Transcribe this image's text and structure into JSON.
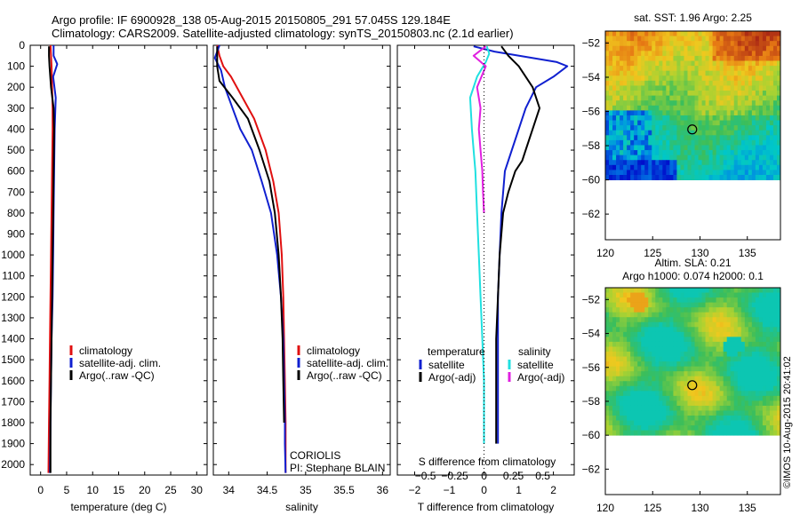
{
  "header": {
    "line1": "Argo profile: IF 6900928_138 05-Aug-2015 20150805_291 57.045S 129.184E",
    "line2": "Climatology: CARS2009. Satellite-adjusted climatology: synTS_20150803.nc (2.1d earlier)"
  },
  "credit": "©IMOS 10-Aug-2015 20:41:02",
  "colors": {
    "climatology": "#e01010",
    "satellite": "#1020d0",
    "argo": "#000000",
    "sal_satellite": "#20e0e0",
    "sal_argo": "#e020e0"
  },
  "chart_data": [
    {
      "id": "temperature",
      "type": "line",
      "xlabel": "temperature (deg C)",
      "ylabel": "",
      "xlim": [
        -2,
        32
      ],
      "ylim": [
        2050,
        0
      ],
      "xticks": [
        0,
        5,
        10,
        15,
        20,
        25,
        30
      ],
      "xtick_labels": [
        "0",
        "5",
        "10",
        "15",
        "20",
        "25",
        "30"
      ],
      "yticks": [
        0,
        100,
        200,
        300,
        400,
        500,
        600,
        700,
        800,
        900,
        1000,
        1100,
        1200,
        1300,
        1400,
        1500,
        1600,
        1700,
        1800,
        1900,
        2000
      ],
      "ytick_labels": [
        "0",
        "100",
        "200",
        "300",
        "400",
        "500",
        "600",
        "700",
        "800",
        "900",
        "1000",
        "1100",
        "1200",
        "1300",
        "1400",
        "1500",
        "1600",
        "1700",
        "1800",
        "1900",
        "2000"
      ],
      "legend": [
        "climatology",
        "satellite-adj. clim.",
        "Argo(..raw -QC)"
      ],
      "series": [
        {
          "name": "climatology",
          "color": "#e01010",
          "x": [
            1.9,
            2.0,
            2.1,
            2.2,
            2.3,
            2.3,
            2.2,
            2.1,
            2.0,
            1.9,
            1.8,
            1.7,
            1.6,
            1.5
          ],
          "y": [
            0,
            50,
            100,
            200,
            300,
            400,
            600,
            800,
            1000,
            1200,
            1400,
            1600,
            1800,
            2040
          ]
        },
        {
          "name": "satellite-adj. clim.",
          "color": "#1020d0",
          "x": [
            2.5,
            2.5,
            3.2,
            2.4,
            2.9,
            2.7,
            2.6,
            2.5,
            2.4,
            2.3,
            2.1,
            2.0,
            1.9,
            1.8
          ],
          "y": [
            0,
            50,
            90,
            150,
            250,
            400,
            600,
            800,
            1000,
            1200,
            1400,
            1600,
            1800,
            2040
          ]
        },
        {
          "name": "Argo(..raw -QC)",
          "color": "#000000",
          "x": [
            1.6,
            1.6,
            1.7,
            2.0,
            2.5,
            2.6,
            2.5,
            2.4,
            2.3,
            2.2,
            2.1,
            2.0,
            1.9,
            1.9
          ],
          "y": [
            5,
            50,
            100,
            200,
            300,
            400,
            600,
            800,
            1000,
            1200,
            1400,
            1600,
            1800,
            2040
          ]
        }
      ]
    },
    {
      "id": "salinity",
      "type": "line",
      "xlabel": "salinity",
      "ylabel": "",
      "xlim": [
        33.8,
        36.1
      ],
      "ylim": [
        2050,
        0
      ],
      "xticks": [
        34,
        34.5,
        35,
        35.5,
        36
      ],
      "xtick_labels": [
        "34",
        "34.5",
        "35",
        "35.5",
        "36"
      ],
      "legend": [
        "climatology",
        "satellite-adj. clim.",
        "Argo(..raw -QC)"
      ],
      "annotations": [
        "CORIOLIS",
        "PI: Stephane BLAIN"
      ],
      "series": [
        {
          "name": "climatology",
          "color": "#e01010",
          "x": [
            33.85,
            33.88,
            33.93,
            34.03,
            34.18,
            34.33,
            34.48,
            34.58,
            34.65,
            34.69,
            34.71,
            34.72,
            34.73,
            34.74,
            34.74,
            34.74
          ],
          "y": [
            0,
            50,
            100,
            150,
            250,
            350,
            500,
            650,
            800,
            1000,
            1200,
            1400,
            1600,
            1800,
            1900,
            2040
          ]
        },
        {
          "name": "satellite-adj. clim.",
          "color": "#1020d0",
          "x": [
            33.88,
            33.82,
            33.9,
            33.95,
            34.05,
            34.15,
            34.3,
            34.43,
            34.55,
            34.63,
            34.68,
            34.71,
            34.72,
            34.73,
            34.73,
            34.74
          ],
          "y": [
            0,
            60,
            120,
            200,
            300,
            400,
            500,
            650,
            800,
            1000,
            1200,
            1400,
            1600,
            1800,
            1900,
            2040
          ]
        },
        {
          "name": "Argo(..raw -QC)",
          "color": "#000000",
          "x": [
            33.85,
            33.85,
            33.88,
            34.05,
            34.25,
            34.4,
            34.53,
            34.6,
            34.65,
            34.68,
            34.7,
            34.71,
            34.72
          ],
          "y": [
            5,
            100,
            170,
            250,
            350,
            500,
            650,
            800,
            1000,
            1200,
            1400,
            1600,
            1800
          ]
        }
      ]
    },
    {
      "id": "differences",
      "type": "line",
      "xlabel": "T difference from climatology",
      "xlabel_top": "S difference from climatology",
      "xlim": [
        -2.5,
        2.6
      ],
      "ylim": [
        2050,
        0
      ],
      "xticks": [
        -2,
        -1,
        0,
        1,
        2
      ],
      "xtick_labels": [
        "−2",
        "−1",
        "0",
        "1",
        "2"
      ],
      "sticks": [
        -0.5,
        -0.25,
        0,
        0.25,
        0.5
      ],
      "stick_labels": [
        "−0.5",
        "−0.25",
        "0",
        "0.25",
        "0.5"
      ],
      "legend_titles": [
        "temperature",
        "salinity"
      ],
      "legend_temperature": [
        "satellite",
        "Argo(-adj)"
      ],
      "legend_salinity": [
        "satellite",
        "Argo(-adj)"
      ],
      "series": [
        {
          "name": "satellite",
          "group": "temperature",
          "color": "#1020d0",
          "x": [
            -0.3,
            0.3,
            2.1,
            2.4,
            2.0,
            1.5,
            1.2,
            1.0,
            0.8,
            0.6,
            0.5,
            0.45,
            0.4,
            0.4,
            0.4,
            0.4
          ],
          "y": [
            5,
            30,
            80,
            100,
            150,
            200,
            300,
            400,
            500,
            600,
            800,
            1000,
            1200,
            1400,
            1600,
            1900
          ]
        },
        {
          "name": "Argo(-adj)",
          "group": "temperature",
          "color": "#000000",
          "x": [
            0.5,
            0.7,
            1.0,
            1.4,
            1.6,
            1.4,
            1.2,
            1.1,
            0.9,
            0.7,
            0.55,
            0.45,
            0.4,
            0.35,
            0.35,
            0.35
          ],
          "y": [
            5,
            50,
            100,
            200,
            300,
            400,
            500,
            550,
            600,
            700,
            800,
            1000,
            1200,
            1400,
            1600,
            1900
          ]
        },
        {
          "name": "satellite",
          "group": "salinity",
          "color": "#20e0e0",
          "x": [
            0.08,
            0.15,
            0.05,
            -0.2,
            -0.4,
            -0.35,
            -0.3,
            -0.25,
            -0.2,
            -0.15,
            -0.1,
            -0.05,
            0,
            0,
            0,
            0
          ],
          "y": [
            5,
            40,
            80,
            150,
            250,
            400,
            500,
            600,
            800,
            1000,
            1200,
            1400,
            1600,
            1700,
            1800,
            1900
          ]
        },
        {
          "name": "Argo(-adj)",
          "group": "salinity",
          "color": "#e020e0",
          "x": [
            0.05,
            -0.3,
            0.05,
            -0.2,
            -0.1,
            -0.15,
            -0.1,
            -0.05,
            -0.03,
            0
          ],
          "y": [
            5,
            50,
            100,
            200,
            300,
            400,
            500,
            600,
            700,
            800
          ]
        }
      ]
    },
    {
      "id": "sst-map",
      "type": "heatmap",
      "title": "sat. SST: 1.96 Argo: 2.25",
      "xlim": [
        120,
        138.5
      ],
      "ylim": [
        -63.5,
        -51.3
      ],
      "xticks": [
        120,
        125,
        130,
        135
      ],
      "yticks": [
        -52,
        -54,
        -56,
        -58,
        -60,
        -62
      ],
      "ytick_labels": [
        "−52",
        "−54",
        "−56",
        "−58",
        "−60",
        "−62"
      ],
      "argo_position": [
        129.18,
        -57.05
      ],
      "data_lat_limit": -60
    },
    {
      "id": "sla-map",
      "type": "heatmap",
      "title": "Altim. SLA: 0.21",
      "subtitle": "Argo h1000: 0.074 h2000: 0.1",
      "xlim": [
        120,
        138.5
      ],
      "ylim": [
        -63.5,
        -51.3
      ],
      "xticks": [
        120,
        125,
        130,
        135
      ],
      "yticks": [
        -52,
        -54,
        -56,
        -58,
        -60,
        -62
      ],
      "ytick_labels": [
        "−52",
        "−54",
        "−56",
        "−58",
        "−60",
        "−62"
      ],
      "argo_position": [
        129.18,
        -57.05
      ],
      "data_lat_limit": -60
    }
  ]
}
